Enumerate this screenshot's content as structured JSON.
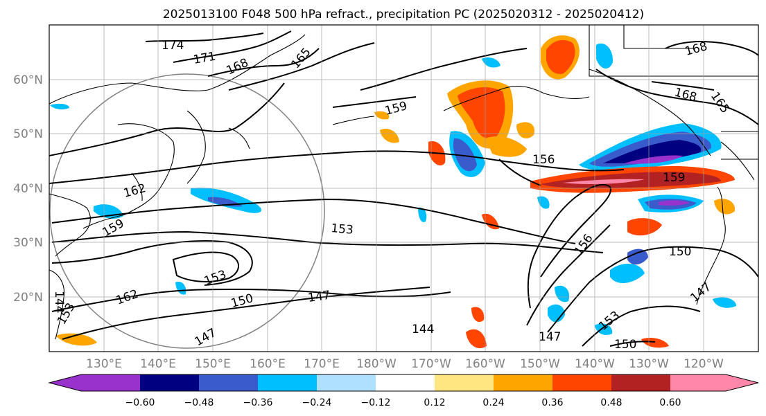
{
  "title": "2025013100 F048 500 hPa refract., precipitation PC (2025020312 - 2025020412)",
  "map": {
    "lat_ticks": [
      "20°N",
      "30°N",
      "40°N",
      "50°N",
      "60°N"
    ],
    "lon_ticks": [
      "130°E",
      "140°E",
      "150°E",
      "160°E",
      "170°E",
      "180°W",
      "170°W",
      "160°W",
      "150°W",
      "140°W",
      "130°W",
      "120°W"
    ],
    "grid": true,
    "coastline_color": "#000000"
  },
  "contour_labels": [
    "174",
    "171",
    "168",
    "165",
    "159",
    "162",
    "159",
    "153",
    "150",
    "147",
    "144",
    "162",
    "153",
    "156",
    "159",
    "150",
    "147",
    "156",
    "153",
    "147",
    "168",
    "168",
    "165",
    "144",
    "147",
    "153",
    "150"
  ],
  "colorbar": {
    "ticks": [
      "−0.60",
      "−0.48",
      "−0.36",
      "−0.24",
      "−0.12",
      "0.12",
      "0.24",
      "0.36",
      "0.48",
      "0.60"
    ],
    "colors": [
      "#9932cc",
      "#000080",
      "#3a5bcc",
      "#00bfff",
      "#b0e0ff",
      "#ffffff",
      "#ffe680",
      "#ffa500",
      "#ff4500",
      "#b22222",
      "#ff88aa"
    ]
  }
}
